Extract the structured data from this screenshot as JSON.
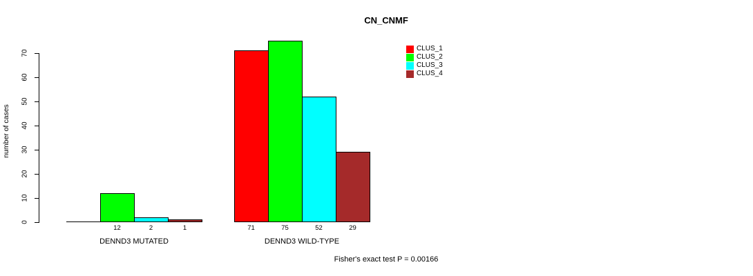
{
  "chart_data": {
    "type": "bar",
    "title": "CN_CNMF",
    "ylabel": "number of cases",
    "ylim": [
      0,
      70
    ],
    "yticks": [
      0,
      10,
      20,
      30,
      40,
      50,
      60,
      70
    ],
    "grid": false,
    "legend_position": "top-right",
    "series_colors": [
      "#ff0000",
      "#00ff00",
      "#00ffff",
      "#a52a2a"
    ],
    "groups": [
      {
        "label": "DENND3 MUTATED",
        "values": [
          0,
          12,
          2,
          1
        ],
        "value_labels": [
          "",
          "12",
          "2",
          "1"
        ]
      },
      {
        "label": "DENND3 WILD-TYPE",
        "values": [
          71,
          75,
          52,
          29
        ],
        "value_labels": [
          "71",
          "75",
          "52",
          "29"
        ]
      }
    ],
    "legend": [
      {
        "label": "CLUS_1",
        "color": "#ff0000"
      },
      {
        "label": "CLUS_2",
        "color": "#00ff00"
      },
      {
        "label": "CLUS_3",
        "color": "#00ffff"
      },
      {
        "label": "CLUS_4",
        "color": "#a52a2a"
      }
    ],
    "annotation": "Fisher's exact test P = 0.00166"
  }
}
